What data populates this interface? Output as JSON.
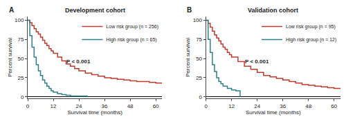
{
  "chart_data": [
    {
      "type": "step",
      "title": "Development cohort",
      "panel_label": "A",
      "annotations": [
        "P < 0.001"
      ],
      "xlabel": "Survival time (months)",
      "ylabel": "Percent survival",
      "series": [
        {
          "name": "Low risk group (n = 256)",
          "color": "#c0392b",
          "x": [
            0,
            1,
            2,
            3,
            4,
            5,
            6,
            7,
            8,
            9,
            10,
            11,
            12,
            14,
            16,
            18,
            20,
            22,
            24,
            27,
            30,
            33,
            36,
            39,
            42,
            45,
            48,
            51,
            54,
            57,
            60,
            63
          ],
          "values": [
            100,
            97,
            93,
            89,
            85,
            82,
            78,
            74,
            70,
            67,
            63,
            60,
            57,
            52,
            47,
            43,
            40,
            37,
            34,
            31,
            29,
            27,
            25,
            24,
            23,
            22,
            21,
            20,
            20,
            19,
            18,
            18
          ]
        },
        {
          "name": "High risk group (n = 65)",
          "color": "#2e7f8c",
          "x": [
            0,
            1,
            2,
            3,
            4,
            5,
            6,
            7,
            8,
            9,
            10,
            11,
            12,
            14,
            16,
            18,
            20,
            22,
            24,
            26,
            28
          ],
          "values": [
            100,
            80,
            65,
            52,
            42,
            34,
            28,
            22,
            18,
            14,
            11,
            8,
            6,
            4,
            3,
            2,
            1,
            1,
            1,
            1,
            0
          ]
        }
      ],
      "xlim": [
        0,
        63
      ],
      "ylim": [
        -2,
        105
      ],
      "xticks": [
        0,
        12,
        24,
        36,
        48,
        60
      ],
      "yticks": [
        0,
        25,
        50,
        75,
        100
      ],
      "grid": false,
      "legend": "upper right"
    },
    {
      "type": "step",
      "title": "Validation cohort",
      "panel_label": "B",
      "annotations": [
        "P < 0.001"
      ],
      "xlabel": "Survival time (months)",
      "ylabel": "Percent survival",
      "series": [
        {
          "name": "Low risk group (n = 95)",
          "color": "#c0392b",
          "x": [
            0,
            1,
            2,
            3,
            4,
            5,
            6,
            7,
            8,
            9,
            10,
            11,
            12,
            15,
            18,
            21,
            24,
            27,
            30,
            33,
            36,
            39,
            42,
            45,
            48,
            51,
            54,
            57,
            60,
            63
          ],
          "values": [
            100,
            96,
            91,
            86,
            81,
            77,
            73,
            69,
            65,
            62,
            58,
            55,
            52,
            46,
            40,
            36,
            32,
            28,
            26,
            24,
            22,
            20,
            18,
            16,
            15,
            14,
            13,
            12,
            11,
            11
          ]
        },
        {
          "name": "High risk group (n = 12)",
          "color": "#2e7f8c",
          "x": [
            0,
            1,
            2,
            3,
            4,
            5,
            6,
            7,
            8,
            10,
            12,
            14,
            16
          ],
          "values": [
            100,
            75,
            58,
            42,
            33,
            25,
            20,
            17,
            14,
            11,
            9,
            8,
            0
          ]
        }
      ],
      "xlim": [
        0,
        63
      ],
      "ylim": [
        -2,
        105
      ],
      "xticks": [
        0,
        12,
        24,
        36,
        48,
        60
      ],
      "yticks": [
        0,
        25,
        50,
        75,
        100
      ],
      "grid": false,
      "legend": "upper right"
    }
  ]
}
